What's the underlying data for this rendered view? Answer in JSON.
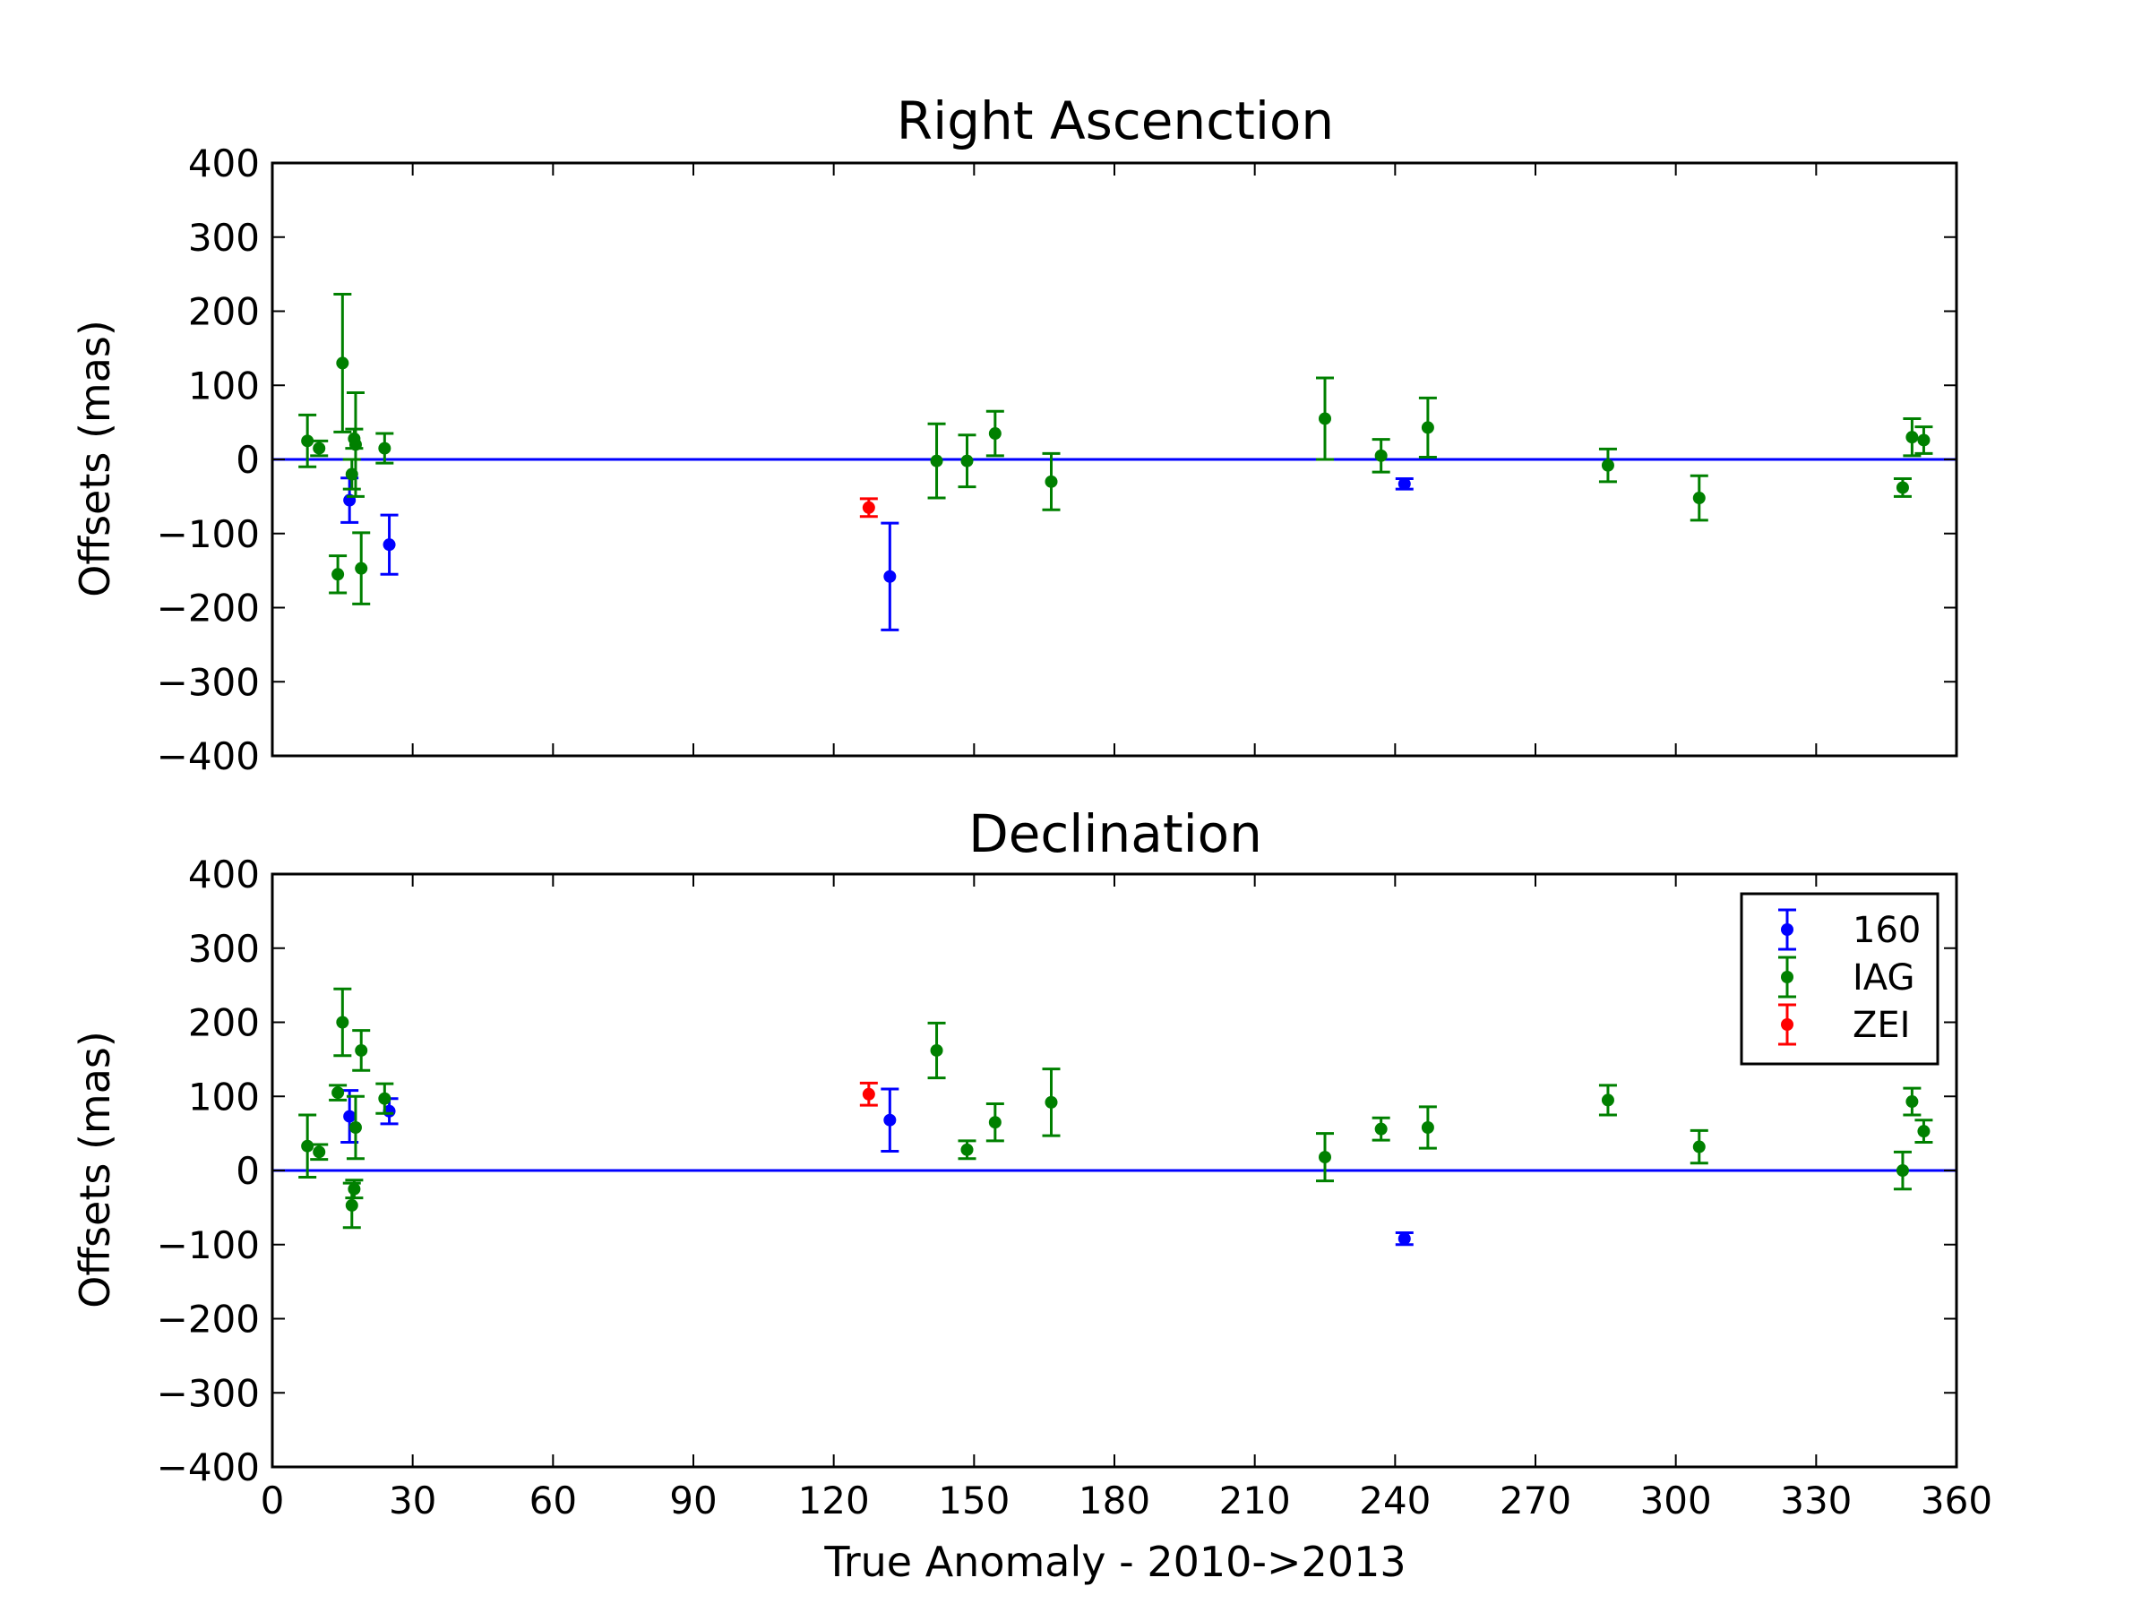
{
  "chart_data": [
    {
      "type": "scatter",
      "title": "Right Ascenction",
      "ylabel": "Offsets (mas)",
      "xlabel": "",
      "xlim": [
        0,
        360
      ],
      "ylim": [
        -400,
        400
      ],
      "yticks": [
        -400,
        -300,
        -200,
        -100,
        0,
        100,
        200,
        300,
        400
      ],
      "ytick_labels": [
        "−400",
        "−300",
        "−200",
        "−100",
        "0",
        "100",
        "200",
        "300",
        "400"
      ],
      "xticks": [
        0,
        30,
        60,
        90,
        120,
        150,
        180,
        210,
        240,
        270,
        300,
        330,
        360
      ],
      "xtick_labels_shown": false,
      "reference_line": 0,
      "grid": false,
      "series": [
        {
          "name": "160",
          "color": "#0000ff",
          "points": [
            {
              "x": 16.5,
              "y": -55,
              "err": 30
            },
            {
              "x": 25,
              "y": -115,
              "err": 40
            },
            {
              "x": 132,
              "y": -158,
              "err": 72
            },
            {
              "x": 242,
              "y": -33,
              "err": 7
            }
          ]
        },
        {
          "name": "IAG",
          "color": "#008000",
          "points": [
            {
              "x": 7.5,
              "y": 25,
              "err": 35
            },
            {
              "x": 10,
              "y": 15,
              "err": 10
            },
            {
              "x": 14,
              "y": -155,
              "err": 25
            },
            {
              "x": 15,
              "y": 130,
              "err": 93
            },
            {
              "x": 17,
              "y": -20,
              "err": 20
            },
            {
              "x": 17.5,
              "y": 28,
              "err": 13
            },
            {
              "x": 17.8,
              "y": 20,
              "err": 70
            },
            {
              "x": 19,
              "y": -147,
              "err": 48
            },
            {
              "x": 24,
              "y": 15,
              "err": 20
            },
            {
              "x": 142,
              "y": -2,
              "err": 50
            },
            {
              "x": 148.5,
              "y": -2,
              "err": 35
            },
            {
              "x": 154.5,
              "y": 35,
              "err": 30
            },
            {
              "x": 166.5,
              "y": -30,
              "err": 38
            },
            {
              "x": 225,
              "y": 55,
              "err": 55
            },
            {
              "x": 237,
              "y": 5,
              "err": 22
            },
            {
              "x": 247,
              "y": 43,
              "err": 40
            },
            {
              "x": 285.5,
              "y": -8,
              "err": 22
            },
            {
              "x": 305,
              "y": -52,
              "err": 30
            },
            {
              "x": 348.5,
              "y": -38,
              "err": 12
            },
            {
              "x": 350.5,
              "y": 30,
              "err": 25
            },
            {
              "x": 353,
              "y": 26,
              "err": 18
            }
          ]
        },
        {
          "name": "ZEI",
          "color": "#ff0000",
          "points": [
            {
              "x": 127.5,
              "y": -65,
              "err": 12
            }
          ]
        }
      ]
    },
    {
      "type": "scatter",
      "title": "Declination",
      "ylabel": "Offsets (mas)",
      "xlabel": "True Anomaly - 2010->2013",
      "xlim": [
        0,
        360
      ],
      "ylim": [
        -400,
        400
      ],
      "yticks": [
        -400,
        -300,
        -200,
        -100,
        0,
        100,
        200,
        300,
        400
      ],
      "ytick_labels": [
        "−400",
        "−300",
        "−200",
        "−100",
        "0",
        "100",
        "200",
        "300",
        "400"
      ],
      "xticks": [
        0,
        30,
        60,
        90,
        120,
        150,
        180,
        210,
        240,
        270,
        300,
        330,
        360
      ],
      "xtick_labels": [
        "0",
        "30",
        "60",
        "90",
        "120",
        "150",
        "180",
        "210",
        "240",
        "270",
        "300",
        "330",
        "360"
      ],
      "reference_line": 0,
      "grid": false,
      "legend_placement": "top-right",
      "legend": [
        "160",
        "IAG",
        "ZEI"
      ],
      "series": [
        {
          "name": "160",
          "color": "#0000ff",
          "points": [
            {
              "x": 16.5,
              "y": 73,
              "err": 35
            },
            {
              "x": 25,
              "y": 80,
              "err": 17
            },
            {
              "x": 132,
              "y": 68,
              "err": 42
            },
            {
              "x": 242,
              "y": -92,
              "err": 8
            }
          ]
        },
        {
          "name": "IAG",
          "color": "#008000",
          "points": [
            {
              "x": 7.5,
              "y": 33,
              "err": 42
            },
            {
              "x": 10,
              "y": 25,
              "err": 10
            },
            {
              "x": 14,
              "y": 105,
              "err": 10
            },
            {
              "x": 15,
              "y": 200,
              "err": 45
            },
            {
              "x": 17,
              "y": -47,
              "err": 30
            },
            {
              "x": 17.5,
              "y": -25,
              "err": 12
            },
            {
              "x": 17.8,
              "y": 58,
              "err": 42
            },
            {
              "x": 19,
              "y": 162,
              "err": 27
            },
            {
              "x": 24,
              "y": 97,
              "err": 20
            },
            {
              "x": 142,
              "y": 162,
              "err": 37
            },
            {
              "x": 148.5,
              "y": 28,
              "err": 12
            },
            {
              "x": 154.5,
              "y": 65,
              "err": 25
            },
            {
              "x": 166.5,
              "y": 92,
              "err": 45
            },
            {
              "x": 225,
              "y": 18,
              "err": 32
            },
            {
              "x": 237,
              "y": 56,
              "err": 15
            },
            {
              "x": 247,
              "y": 58,
              "err": 28
            },
            {
              "x": 285.5,
              "y": 95,
              "err": 20
            },
            {
              "x": 305,
              "y": 32,
              "err": 22
            },
            {
              "x": 348.5,
              "y": 0,
              "err": 25
            },
            {
              "x": 350.5,
              "y": 93,
              "err": 18
            },
            {
              "x": 353,
              "y": 53,
              "err": 15
            }
          ]
        },
        {
          "name": "ZEI",
          "color": "#ff0000",
          "points": [
            {
              "x": 127.5,
              "y": 103,
              "err": 15
            }
          ]
        }
      ]
    }
  ]
}
